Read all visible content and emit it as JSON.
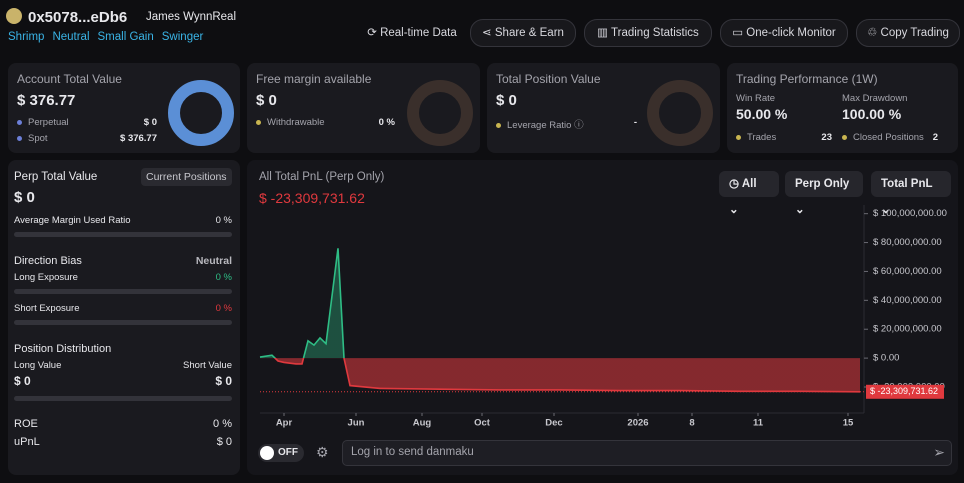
{
  "header": {
    "address": "0x5078...eDb6",
    "name": "James WynnReal",
    "tags": [
      "Shrimp",
      "Neutral",
      "Small Gain",
      "Swinger"
    ],
    "buttons": [
      "Real-time Data",
      "Share & Earn",
      "Trading Statistics",
      "One-click Monitor",
      "Copy Trading"
    ]
  },
  "cards": [
    {
      "title": "Account Total Value",
      "value": "$ 376.77",
      "rows": [
        {
          "label": "Perpetual",
          "value": "$ 0"
        },
        {
          "label": "Spot",
          "value": "$ 376.77"
        }
      ]
    },
    {
      "title": "Free margin available",
      "value": "$ 0",
      "rows": [
        {
          "label": "Withdrawable",
          "value": "0 %"
        }
      ]
    },
    {
      "title": "Total Position Value",
      "value": "$ 0",
      "rows": [
        {
          "label": "Leverage Ratio",
          "value": "-"
        }
      ]
    }
  ],
  "performance": {
    "title": "Trading Performance (1W)",
    "metrics": [
      {
        "label": "Win Rate",
        "value": "50.00 %"
      },
      {
        "label": "Max Drawdown",
        "value": "100.00 %"
      }
    ],
    "counts": [
      {
        "label": "Trades",
        "value": "23"
      },
      {
        "label": "Closed Positions",
        "value": "2"
      }
    ]
  },
  "perp": {
    "title": "Perp Total Value",
    "value": "$ 0",
    "button": "Current Positions",
    "margin_label": "Average Margin Used Ratio",
    "margin_value": "0 %",
    "bias_label": "Direction Bias",
    "bias_value": "Neutral",
    "long_exposure_label": "Long Exposure",
    "long_exposure_value": "0 %",
    "short_exposure_label": "Short Exposure",
    "short_exposure_value": "0 %",
    "distribution_label": "Position Distribution",
    "long_value_label": "Long Value",
    "long_value": "$ 0",
    "short_value_label": "Short Value",
    "short_value": "$ 0",
    "roe_label": "ROE",
    "roe_value": "0 %",
    "upnl_label": "uPnL",
    "upnl_value": "$ 0"
  },
  "chart_data": {
    "type": "line",
    "title": "All Total PnL (Perp Only)",
    "current_value": "$ -23,309,731.62",
    "filters": [
      "All",
      "Perp Only",
      "Total PnL"
    ],
    "x": [
      0,
      2,
      3,
      4,
      6,
      7,
      8,
      9,
      10,
      11,
      13,
      14,
      15,
      20,
      30,
      40,
      50,
      60,
      70,
      80,
      90,
      100
    ],
    "series": [
      {
        "color": "#2ebd85",
        "negative_color": "#e0393e",
        "values": [
          700000,
          2000000,
          -2000000,
          -3000000,
          -4000000,
          -4000000,
          12000000,
          9000000,
          14000000,
          10000000,
          76000000,
          0,
          -19000000,
          -21000000,
          -21500000,
          -22000000,
          -22000000,
          -22500000,
          -22500000,
          -23000000,
          -23000000,
          -23309731.62
        ]
      }
    ],
    "xlim": [
      0,
      100
    ],
    "xticks": [
      {
        "value": 4,
        "label": "Apr"
      },
      {
        "value": 16,
        "label": "Jun"
      },
      {
        "value": 27,
        "label": "Aug"
      },
      {
        "value": 37,
        "label": "Oct"
      },
      {
        "value": 49,
        "label": "Dec"
      },
      {
        "value": 63,
        "label": "2026"
      },
      {
        "value": 72,
        "label": "8"
      },
      {
        "value": 83,
        "label": "11"
      },
      {
        "value": 98,
        "label": "15"
      }
    ],
    "ylim": [
      -38000000,
      106000000
    ],
    "yticks": [
      {
        "value": 100000000,
        "label": "$ 100,000,000.00"
      },
      {
        "value": 80000000,
        "label": "$ 80,000,000.00"
      },
      {
        "value": 60000000,
        "label": "$ 60,000,000.00"
      },
      {
        "value": 40000000,
        "label": "$ 40,000,000.00"
      },
      {
        "value": 20000000,
        "label": "$ 20,000,000.00"
      },
      {
        "value": 0,
        "label": "$ 0.00"
      },
      {
        "value": -20000000,
        "label": "$ -20,000,000.00"
      }
    ]
  },
  "footer": {
    "toggle": "OFF",
    "placeholder": "Log in to send danmaku"
  }
}
